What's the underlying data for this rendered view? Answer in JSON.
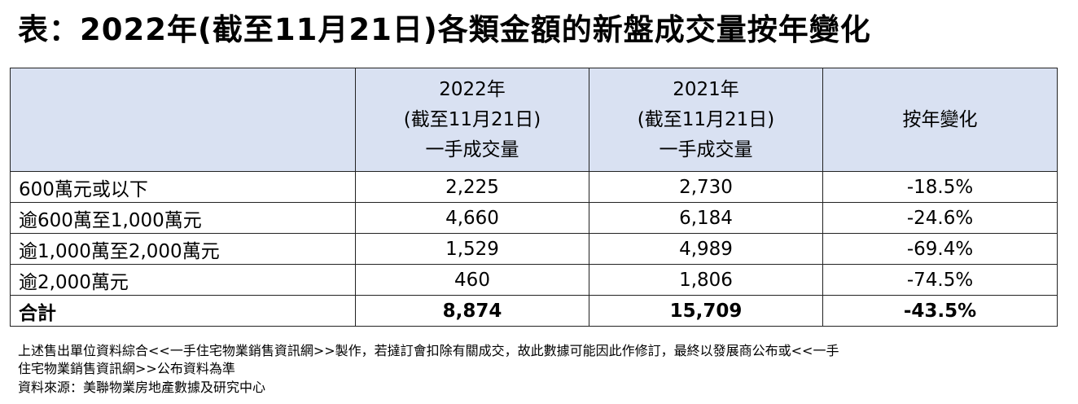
{
  "title": "表：2022年(截至11月21日)各類金額的新盤成交量按年變化",
  "table": {
    "headers": [
      "",
      [
        "2022年",
        "(截至11月21日)",
        "一手成交量"
      ],
      [
        "2021年",
        "(截至11月21日)",
        "一手成交量"
      ],
      "按年變化"
    ],
    "rows": [
      {
        "label": "600萬元或以下",
        "y2022": "2,225",
        "y2021": "2,730",
        "change": "-18.5%"
      },
      {
        "label": "逾600萬至1,000萬元",
        "y2022": "4,660",
        "y2021": "6,184",
        "change": "-24.6%"
      },
      {
        "label": "逾1,000萬至2,000萬元",
        "y2022": "1,529",
        "y2021": "4,989",
        "change": "-69.4%"
      },
      {
        "label": "逾2,000萬元",
        "y2022": "460",
        "y2021": "1,806",
        "change": "-74.5%"
      }
    ],
    "total": {
      "label": "合計",
      "y2022": "8,874",
      "y2021": "15,709",
      "change": "-43.5%"
    }
  },
  "notes": {
    "line1": "上述售出單位資料綜合<<一手住宅物業銷售資訊網>>製作，若撻訂會扣除有關成交，故此數據可能因此作修訂，最終以發展商公布或<<一手",
    "line2": "住宅物業銷售資訊網>>公布資料為準",
    "source": "資料來源：美聯物業房地產數據及研究中心"
  },
  "colors": {
    "header_bg": "#d9e1f2",
    "border": "#222222"
  }
}
